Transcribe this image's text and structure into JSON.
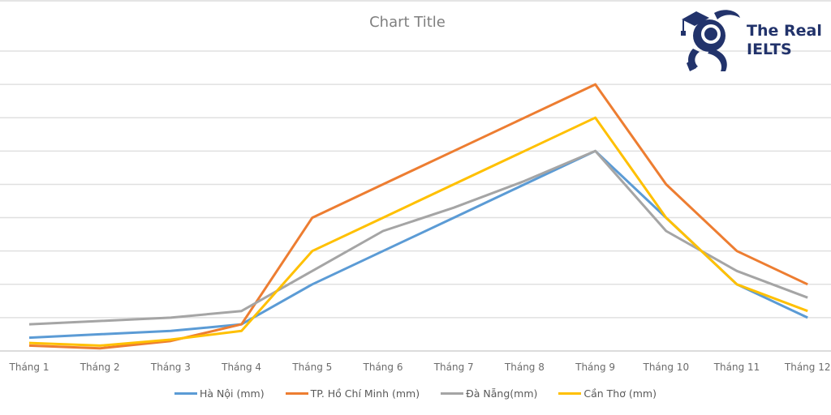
{
  "chart_title": "Chart Title",
  "logo": {
    "line1": "The Real",
    "line2": "IELTS",
    "color": "#22336b"
  },
  "chart_data": {
    "type": "line",
    "title": "Chart Title",
    "xlabel": "",
    "ylabel": "",
    "categories": [
      "Tháng 1",
      "Tháng 2",
      "Tháng 3",
      "Tháng 4",
      "Tháng 5",
      "Tháng 6",
      "Tháng 7",
      "Tháng 8",
      "Tháng 9",
      "Tháng 10",
      "Tháng 11",
      "Tháng 12"
    ],
    "ylim": [
      0,
      450
    ],
    "y_gridline_step": 50,
    "y_tick_labels_visible": false,
    "grid": true,
    "legend_position": "bottom",
    "series": [
      {
        "name": "Hà Nội (mm)",
        "color": "#5b9bd5",
        "values": [
          20,
          25,
          30,
          40,
          100,
          150,
          200,
          250,
          300,
          200,
          100,
          50
        ]
      },
      {
        "name": "TP. Hồ Chí Minh (mm)",
        "color": "#ed7d31",
        "values": [
          8,
          4,
          15,
          40,
          200,
          250,
          300,
          350,
          400,
          250,
          150,
          100
        ]
      },
      {
        "name": "Đà Nẵng(mm)",
        "color": "#a5a5a5",
        "values": [
          40,
          45,
          50,
          60,
          120,
          180,
          215,
          255,
          300,
          180,
          120,
          80
        ]
      },
      {
        "name": "Cần Thơ (mm)",
        "color": "#ffc000",
        "values": [
          12,
          8,
          17,
          30,
          150,
          200,
          250,
          300,
          350,
          200,
          100,
          60
        ]
      }
    ]
  }
}
